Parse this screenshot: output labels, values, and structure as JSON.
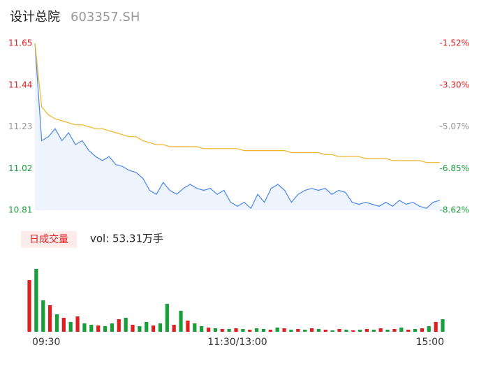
{
  "chart_data": {
    "type": "line",
    "title": "设计总院",
    "subtitle": "603357.SH",
    "x": [
      0,
      4,
      8,
      12,
      16,
      20,
      24,
      28,
      32,
      36,
      40,
      44,
      48,
      52,
      56,
      60,
      64,
      68,
      72,
      76,
      80,
      84,
      88,
      92,
      96,
      100,
      104,
      108,
      112,
      116,
      120,
      124,
      128,
      132,
      136,
      140,
      144,
      148,
      152,
      156,
      160,
      164,
      168,
      172,
      176,
      180,
      184,
      188,
      192,
      196,
      200,
      204,
      208,
      212,
      216,
      220,
      224,
      228,
      232,
      236,
      240
    ],
    "xlim": [
      0,
      240
    ],
    "xticks": [
      {
        "value": 0,
        "label": "09:30"
      },
      {
        "value": 120,
        "label": "11:30/13:00"
      },
      {
        "value": 240,
        "label": "15:00"
      }
    ],
    "ylim": [
      10.81,
      11.65
    ],
    "yticks": [
      10.81,
      11.02,
      11.23,
      11.44,
      11.65
    ],
    "ytick_colors": [
      "#1a9e3a",
      "#1a9e3a",
      "#999999",
      "#e02020",
      "#e02020"
    ],
    "y2lim": [
      -8.62,
      -1.52
    ],
    "y2ticks": [
      {
        "value": -8.62,
        "label": "-8.62%"
      },
      {
        "value": -6.85,
        "label": "-6.85%"
      },
      {
        "value": -5.07,
        "label": "-5.07%"
      },
      {
        "value": -3.3,
        "label": "-3.30%"
      },
      {
        "value": -1.52,
        "label": "-1.52%"
      }
    ],
    "series": [
      {
        "color": "#4a86e8",
        "fill": "#eef4fd",
        "values": [
          11.65,
          11.16,
          11.18,
          11.22,
          11.16,
          11.2,
          11.14,
          11.16,
          11.11,
          11.08,
          11.06,
          11.08,
          11.04,
          11.03,
          11.01,
          11.0,
          10.97,
          10.91,
          10.89,
          10.95,
          10.91,
          10.89,
          10.92,
          10.94,
          10.92,
          10.91,
          10.92,
          10.89,
          10.91,
          10.85,
          10.83,
          10.85,
          10.82,
          10.89,
          10.85,
          10.92,
          10.94,
          10.91,
          10.85,
          10.89,
          10.91,
          10.92,
          10.91,
          10.92,
          10.89,
          10.91,
          10.9,
          10.85,
          10.84,
          10.85,
          10.84,
          10.83,
          10.85,
          10.83,
          10.86,
          10.84,
          10.85,
          10.83,
          10.82,
          10.85,
          10.86
        ]
      },
      {
        "color": "#f0b429",
        "values": [
          11.65,
          11.33,
          11.29,
          11.27,
          11.26,
          11.25,
          11.24,
          11.24,
          11.23,
          11.22,
          11.22,
          11.21,
          11.2,
          11.19,
          11.18,
          11.18,
          11.16,
          11.15,
          11.14,
          11.14,
          11.13,
          11.13,
          11.13,
          11.13,
          11.13,
          11.12,
          11.12,
          11.12,
          11.12,
          11.12,
          11.12,
          11.11,
          11.11,
          11.11,
          11.11,
          11.11,
          11.11,
          11.11,
          11.1,
          11.1,
          11.1,
          11.1,
          11.1,
          11.09,
          11.09,
          11.08,
          11.08,
          11.08,
          11.08,
          11.07,
          11.07,
          11.07,
          11.07,
          11.06,
          11.06,
          11.06,
          11.06,
          11.06,
          11.05,
          11.05,
          11.05
        ]
      }
    ],
    "volume_label": "日成交量",
    "volume_text": "vol: 53.31万手",
    "volume": {
      "ylim": [
        0,
        100
      ],
      "values": [
        74,
        90,
        45,
        38,
        25,
        20,
        14,
        22,
        12,
        10,
        9,
        8,
        12,
        18,
        20,
        10,
        8,
        14,
        9,
        12,
        40,
        10,
        30,
        16,
        12,
        8,
        6,
        5,
        4,
        4,
        5,
        4,
        3,
        5,
        4,
        3,
        6,
        5,
        3,
        4,
        3,
        5,
        4,
        3,
        2,
        4,
        3,
        2,
        3,
        4,
        3,
        5,
        3,
        4,
        6,
        3,
        4,
        5,
        8,
        14,
        18
      ],
      "colors": [
        "#e02020",
        "#1a9e3a",
        "#1a9e3a",
        "#e02020",
        "#1a9e3a",
        "#e02020",
        "#1a9e3a",
        "#e02020",
        "#1a9e3a",
        "#1a9e3a",
        "#e02020",
        "#1a9e3a",
        "#1a9e3a",
        "#e02020",
        "#1a9e3a",
        "#e02020",
        "#1a9e3a",
        "#1a9e3a",
        "#e02020",
        "#1a9e3a",
        "#1a9e3a",
        "#e02020",
        "#1a9e3a",
        "#e02020",
        "#1a9e3a",
        "#1a9e3a",
        "#e02020",
        "#1a9e3a",
        "#e02020",
        "#1a9e3a",
        "#e02020",
        "#1a9e3a",
        "#e02020",
        "#1a9e3a",
        "#1a9e3a",
        "#e02020",
        "#1a9e3a",
        "#e02020",
        "#1a9e3a",
        "#e02020",
        "#1a9e3a",
        "#e02020",
        "#1a9e3a",
        "#e02020",
        "#1a9e3a",
        "#e02020",
        "#1a9e3a",
        "#e02020",
        "#1a9e3a",
        "#e02020",
        "#1a9e3a",
        "#e02020",
        "#1a9e3a",
        "#e02020",
        "#1a9e3a",
        "#e02020",
        "#1a9e3a",
        "#e02020",
        "#1a9e3a",
        "#e02020",
        "#1a9e3a"
      ]
    }
  }
}
